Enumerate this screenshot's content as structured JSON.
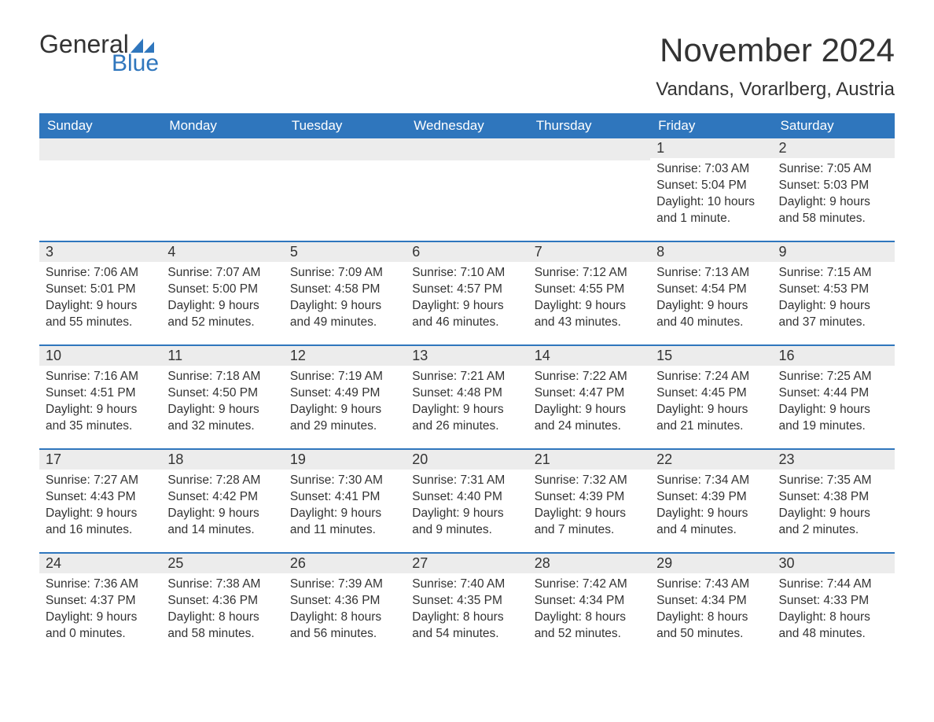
{
  "logo": {
    "text1": "General",
    "text2": "Blue",
    "triangle_color": "#2f76bd"
  },
  "title": "November 2024",
  "subtitle": "Vandans, Vorarlberg, Austria",
  "colors": {
    "header_bg": "#2f76bd",
    "header_text": "#ffffff",
    "row_border": "#2f76bd",
    "daynum_bg": "#ececec",
    "text": "#333333",
    "bg": "#ffffff"
  },
  "day_headers": [
    "Sunday",
    "Monday",
    "Tuesday",
    "Wednesday",
    "Thursday",
    "Friday",
    "Saturday"
  ],
  "weeks": [
    [
      null,
      null,
      null,
      null,
      null,
      {
        "n": "1",
        "sunrise": "7:03 AM",
        "sunset": "5:04 PM",
        "daylight": "10 hours and 1 minute."
      },
      {
        "n": "2",
        "sunrise": "7:05 AM",
        "sunset": "5:03 PM",
        "daylight": "9 hours and 58 minutes."
      }
    ],
    [
      {
        "n": "3",
        "sunrise": "7:06 AM",
        "sunset": "5:01 PM",
        "daylight": "9 hours and 55 minutes."
      },
      {
        "n": "4",
        "sunrise": "7:07 AM",
        "sunset": "5:00 PM",
        "daylight": "9 hours and 52 minutes."
      },
      {
        "n": "5",
        "sunrise": "7:09 AM",
        "sunset": "4:58 PM",
        "daylight": "9 hours and 49 minutes."
      },
      {
        "n": "6",
        "sunrise": "7:10 AM",
        "sunset": "4:57 PM",
        "daylight": "9 hours and 46 minutes."
      },
      {
        "n": "7",
        "sunrise": "7:12 AM",
        "sunset": "4:55 PM",
        "daylight": "9 hours and 43 minutes."
      },
      {
        "n": "8",
        "sunrise": "7:13 AM",
        "sunset": "4:54 PM",
        "daylight": "9 hours and 40 minutes."
      },
      {
        "n": "9",
        "sunrise": "7:15 AM",
        "sunset": "4:53 PM",
        "daylight": "9 hours and 37 minutes."
      }
    ],
    [
      {
        "n": "10",
        "sunrise": "7:16 AM",
        "sunset": "4:51 PM",
        "daylight": "9 hours and 35 minutes."
      },
      {
        "n": "11",
        "sunrise": "7:18 AM",
        "sunset": "4:50 PM",
        "daylight": "9 hours and 32 minutes."
      },
      {
        "n": "12",
        "sunrise": "7:19 AM",
        "sunset": "4:49 PM",
        "daylight": "9 hours and 29 minutes."
      },
      {
        "n": "13",
        "sunrise": "7:21 AM",
        "sunset": "4:48 PM",
        "daylight": "9 hours and 26 minutes."
      },
      {
        "n": "14",
        "sunrise": "7:22 AM",
        "sunset": "4:47 PM",
        "daylight": "9 hours and 24 minutes."
      },
      {
        "n": "15",
        "sunrise": "7:24 AM",
        "sunset": "4:45 PM",
        "daylight": "9 hours and 21 minutes."
      },
      {
        "n": "16",
        "sunrise": "7:25 AM",
        "sunset": "4:44 PM",
        "daylight": "9 hours and 19 minutes."
      }
    ],
    [
      {
        "n": "17",
        "sunrise": "7:27 AM",
        "sunset": "4:43 PM",
        "daylight": "9 hours and 16 minutes."
      },
      {
        "n": "18",
        "sunrise": "7:28 AM",
        "sunset": "4:42 PM",
        "daylight": "9 hours and 14 minutes."
      },
      {
        "n": "19",
        "sunrise": "7:30 AM",
        "sunset": "4:41 PM",
        "daylight": "9 hours and 11 minutes."
      },
      {
        "n": "20",
        "sunrise": "7:31 AM",
        "sunset": "4:40 PM",
        "daylight": "9 hours and 9 minutes."
      },
      {
        "n": "21",
        "sunrise": "7:32 AM",
        "sunset": "4:39 PM",
        "daylight": "9 hours and 7 minutes."
      },
      {
        "n": "22",
        "sunrise": "7:34 AM",
        "sunset": "4:39 PM",
        "daylight": "9 hours and 4 minutes."
      },
      {
        "n": "23",
        "sunrise": "7:35 AM",
        "sunset": "4:38 PM",
        "daylight": "9 hours and 2 minutes."
      }
    ],
    [
      {
        "n": "24",
        "sunrise": "7:36 AM",
        "sunset": "4:37 PM",
        "daylight": "9 hours and 0 minutes."
      },
      {
        "n": "25",
        "sunrise": "7:38 AM",
        "sunset": "4:36 PM",
        "daylight": "8 hours and 58 minutes."
      },
      {
        "n": "26",
        "sunrise": "7:39 AM",
        "sunset": "4:36 PM",
        "daylight": "8 hours and 56 minutes."
      },
      {
        "n": "27",
        "sunrise": "7:40 AM",
        "sunset": "4:35 PM",
        "daylight": "8 hours and 54 minutes."
      },
      {
        "n": "28",
        "sunrise": "7:42 AM",
        "sunset": "4:34 PM",
        "daylight": "8 hours and 52 minutes."
      },
      {
        "n": "29",
        "sunrise": "7:43 AM",
        "sunset": "4:34 PM",
        "daylight": "8 hours and 50 minutes."
      },
      {
        "n": "30",
        "sunrise": "7:44 AM",
        "sunset": "4:33 PM",
        "daylight": "8 hours and 48 minutes."
      }
    ]
  ],
  "labels": {
    "sunrise": "Sunrise: ",
    "sunset": "Sunset: ",
    "daylight": "Daylight: "
  }
}
